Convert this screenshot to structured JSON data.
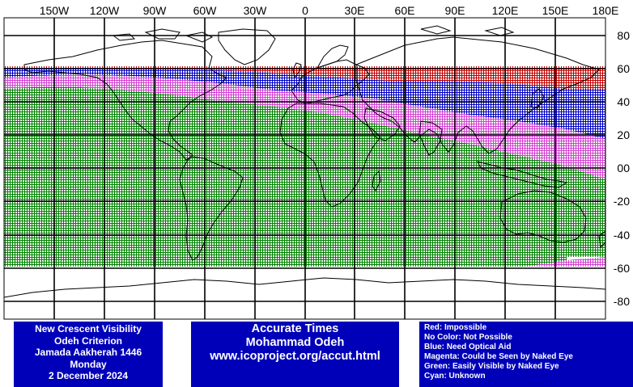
{
  "map": {
    "lon_labels": [
      "150W",
      "120W",
      "90W",
      "60W",
      "30W",
      "0",
      "30E",
      "60E",
      "90E",
      "120E",
      "150E",
      "180E"
    ],
    "lat_labels": [
      "80",
      "60",
      "40",
      "20",
      "00",
      "-20",
      "-40",
      "-60",
      "-80"
    ],
    "colors": {
      "impossible": "#c00000",
      "optical_aid": "#0000c0",
      "naked_eye_maybe": "#d040d0",
      "easily_visible": "#008000",
      "grid": "#000000",
      "coast": "#000000"
    }
  },
  "info_left": {
    "line1": "New Crescent Visibility",
    "line2": "Odeh Criterion",
    "line3": "Jamada Aakherah 1446",
    "line4": "Monday",
    "line5": "2 December 2024"
  },
  "info_center": {
    "line1": "Accurate Times",
    "line2": "Mohammad Odeh",
    "line3": "www.icoproject.org/accut.html"
  },
  "legend": {
    "red": "Red: Impossible",
    "none": "No Color: Not Possible",
    "blue": "Blue: Need Optical Aid",
    "magenta": "Magenta: Could be Seen by Naked Eye",
    "green": "Green: Easily Visible by Naked Eye",
    "cyan": "Cyan: Unknown"
  }
}
